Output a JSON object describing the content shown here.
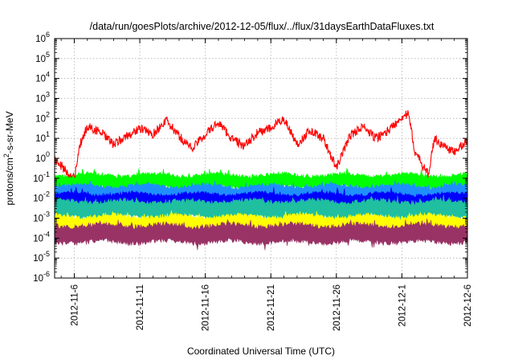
{
  "chart_data": {
    "type": "line",
    "title": "/data/run/goesPlots/archive/2012-12-05/flux/../flux/31daysEarthDataFluxes.txt",
    "xlabel": "Coordinated Universal Time (UTC)",
    "ylabel": {
      "pre": "protons/cm",
      "sup": "2",
      "post": "-s-sr-MeV"
    },
    "y_scale": "log",
    "ylim_exponents": [
      -6,
      6
    ],
    "y_tick_base": "10",
    "y_tick_exponents": [
      "6",
      "5",
      "4",
      "3",
      "2",
      "1",
      "0",
      "-1",
      "-2",
      "-3",
      "-4",
      "-5",
      "-6"
    ],
    "x_range_days_since_2012_11_06": [
      -1.5,
      30.0
    ],
    "x_tick_labels": [
      "2012-11-6",
      "2012-11-11",
      "2012-11-16",
      "2012-11-21",
      "2012-11-26",
      "2012-12-1",
      "2012-12-6"
    ],
    "grid": true,
    "grid_style": "dotted",
    "series": [
      {
        "color": "#ff0000",
        "x_dates": [
          "2012-11-4.5",
          "2012-11-5",
          "2012-11-5.5",
          "2012-11-6",
          "2012-11-6.5",
          "2012-11-7",
          "2012-11-8",
          "2012-11-9",
          "2012-11-10",
          "2012-11-11",
          "2012-11-12",
          "2012-11-13",
          "2012-11-14",
          "2012-11-15",
          "2012-11-16",
          "2012-11-17",
          "2012-11-18",
          "2012-11-19",
          "2012-11-20",
          "2012-11-21",
          "2012-11-22",
          "2012-11-23",
          "2012-11-24",
          "2012-11-25",
          "2012-11-26",
          "2012-11-27",
          "2012-11-28",
          "2012-11-29",
          "2012-11-30",
          "2012-12-1",
          "2012-12-1.5",
          "2012-12-2",
          "2012-12-3",
          "2012-12-3.5",
          "2012-12-4",
          "2012-12-5",
          "2012-12-6"
        ],
        "log10_values": [
          0.0,
          -0.4,
          -0.7,
          -1.0,
          0.8,
          1.6,
          1.3,
          0.7,
          1.1,
          1.5,
          1.2,
          1.9,
          1.1,
          0.5,
          1.2,
          1.8,
          1.0,
          0.6,
          1.3,
          1.5,
          2.0,
          0.7,
          1.4,
          1.0,
          -0.5,
          1.1,
          1.6,
          1.0,
          1.4,
          2.1,
          2.2,
          0.3,
          -0.8,
          1.0,
          0.7,
          0.3,
          0.9
        ]
      },
      {
        "color": "#00ff00",
        "band_log10": [
          -1.55,
          -0.75
        ]
      },
      {
        "color": "#1f8fff",
        "band_log10": [
          -2.1,
          -1.3
        ]
      },
      {
        "color": "#0000ff",
        "band_log10": [
          -2.45,
          -1.7
        ]
      },
      {
        "color": "#1fbfa0",
        "band_log10": [
          -3.05,
          -2.05
        ]
      },
      {
        "color": "#ffff00",
        "band_log10": [
          -3.75,
          -2.8
        ]
      },
      {
        "color": "#993366",
        "band_log10": [
          -4.3,
          -3.25
        ]
      }
    ]
  }
}
